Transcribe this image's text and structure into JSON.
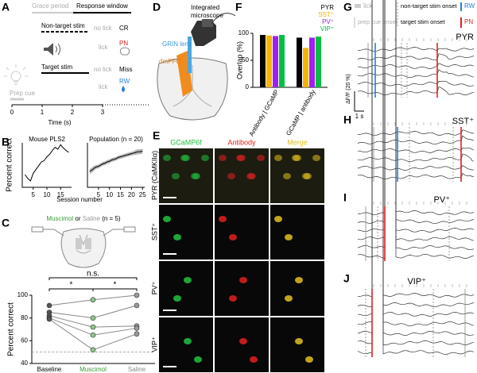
{
  "panels": {
    "a": {
      "letter": "A",
      "grace": "Grace period",
      "window": "Response window",
      "rows": [
        {
          "stim": "Non-target stim",
          "no_lick": "no lick",
          "no_lick_outcome": "CR",
          "lick": "lick",
          "lick_outcome": "PN"
        },
        {
          "stim": "Target stim",
          "no_lick": "no lick",
          "no_lick_outcome": "Miss",
          "lick": "lick",
          "lick_outcome": "RW"
        }
      ],
      "prep": "Prep cue",
      "xlabel": "Time (s)",
      "xticks": [
        0,
        1,
        2,
        3
      ]
    },
    "b": {
      "letter": "B",
      "xlabel": "Session number"
    },
    "c": {
      "letter": "C",
      "title_parts": [
        "Muscimol",
        " or ",
        "Saline",
        " (n = 5)"
      ]
    },
    "d": {
      "letter": "D",
      "microscope": [
        "Integrated",
        "microscope"
      ],
      "lens": "GRIN lens",
      "region": "dmPFC"
    },
    "e": {
      "letter": "E",
      "columns": [
        "GCaMP6f",
        "Antibody",
        "Merge"
      ],
      "rows": [
        "PYR (CaMKIIα)",
        "SST⁺",
        "PV⁺",
        "VIP⁺"
      ]
    },
    "f": {
      "letter": "F"
    },
    "g": {
      "letter": "G",
      "title": "PYR",
      "legend": [
        "lick",
        "non-target stim onset",
        "RW",
        "prep cue onset",
        "target stim onset",
        "PN"
      ],
      "scale_y": "ΔF/F (20 %)",
      "scale_x": "1 s"
    },
    "h": {
      "letter": "H",
      "title": "SST⁺"
    },
    "i": {
      "letter": "I",
      "title": "PV⁺"
    },
    "j": {
      "letter": "J",
      "title": "VIP⁺"
    }
  },
  "chart_data": [
    {
      "type": "line",
      "title": "Mouse PLS2",
      "ylabel": "Percent correct",
      "color": "#000",
      "x": [
        2,
        3,
        4,
        5,
        6,
        7,
        8,
        9,
        10,
        11,
        12,
        13,
        14,
        15,
        16,
        17,
        18
      ],
      "values": [
        50,
        44,
        40,
        52,
        58,
        64,
        70,
        72,
        78,
        82,
        88,
        93,
        90,
        97,
        92,
        88,
        85
      ],
      "xlim": [
        1,
        19
      ],
      "xticks": [
        5,
        10,
        15
      ],
      "ylim": [
        30,
        100
      ]
    },
    {
      "type": "band",
      "title": "Population (n = 20)",
      "color": "#000",
      "band_color": "#999",
      "x": [
        1,
        2,
        3,
        4,
        5,
        6,
        7,
        8,
        9,
        10,
        11,
        12,
        13,
        14,
        15,
        16,
        17,
        18,
        19,
        20,
        21,
        22,
        23,
        24,
        25
      ],
      "values": [
        55,
        57,
        60,
        62,
        63,
        65,
        67,
        68,
        70,
        71,
        73,
        74,
        75,
        77,
        78,
        79,
        80,
        81,
        82,
        83,
        84,
        85,
        86,
        86,
        87
      ],
      "sem": [
        4,
        4,
        4,
        3,
        3,
        3,
        3,
        3,
        3,
        3,
        3,
        3,
        3,
        3,
        3,
        3,
        3,
        3,
        3,
        3,
        3,
        4,
        4,
        4,
        4
      ],
      "xlim": [
        0,
        26
      ],
      "xticks": [
        5,
        10,
        15,
        20,
        25
      ],
      "ylim": [
        30,
        100
      ]
    },
    {
      "type": "paired",
      "ylabel": "Percent correct",
      "categories": [
        "Baseline",
        "Muscimol",
        "Saline"
      ],
      "point_colors": [
        "#555",
        "#8cc68c",
        "#999"
      ],
      "line_color": "#888",
      "series": [
        {
          "values": [
            91,
            96,
            100
          ]
        },
        {
          "values": [
            85,
            80,
            91
          ]
        },
        {
          "values": [
            82,
            72,
            73
          ]
        },
        {
          "values": [
            80,
            65,
            71
          ]
        },
        {
          "values": [
            79,
            52,
            66
          ]
        }
      ],
      "comparisons": [
        {
          "pair": [
            0,
            1
          ],
          "label": "*"
        },
        {
          "pair": [
            0,
            2
          ],
          "label": "n.s."
        },
        {
          "pair": [
            1,
            2
          ],
          "label": "*"
        }
      ],
      "refline": 50,
      "ylim": [
        40,
        100
      ],
      "yticks": [
        40,
        60,
        80,
        100
      ]
    },
    {
      "type": "bar",
      "ylabel": "Overlap (%)",
      "categories": [
        "Antibody | GCaMP",
        "GCaMP | antibody"
      ],
      "series": [
        {
          "name": "PYR",
          "color": "#000000",
          "values": [
            97,
            92
          ]
        },
        {
          "name": "SST⁺",
          "color": "#f5b400",
          "values": [
            96,
            73
          ]
        },
        {
          "name": "PV⁺",
          "color": "#a020f0",
          "values": [
            95,
            92
          ]
        },
        {
          "name": "VIP⁺",
          "color": "#00c040",
          "values": [
            97,
            94
          ]
        }
      ],
      "ylim": [
        0,
        100
      ],
      "yticks": [
        0,
        50,
        100
      ]
    }
  ]
}
